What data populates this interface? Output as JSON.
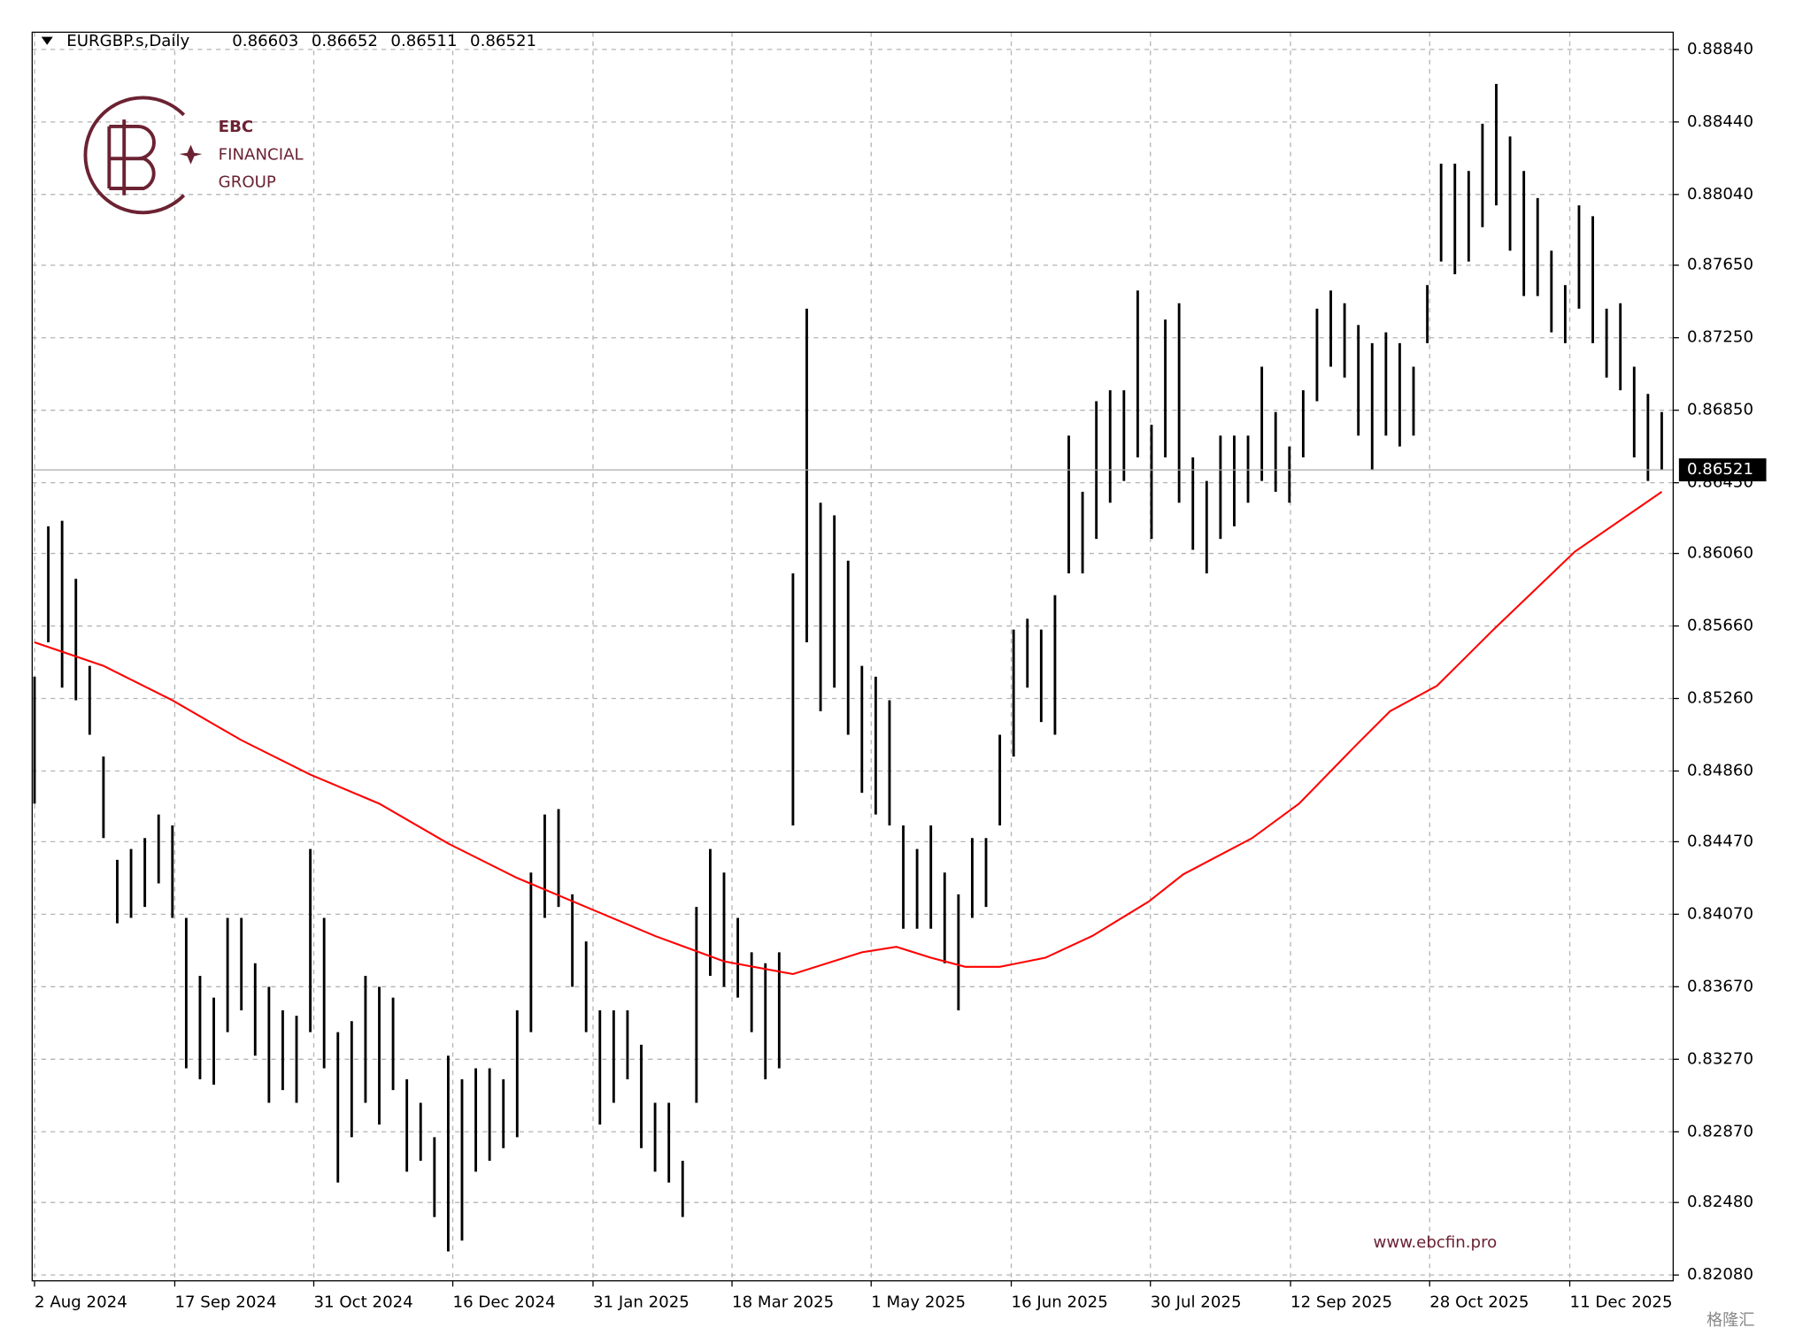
{
  "chart_data": {
    "type": "ohlc",
    "title": "EURGBP.s,Daily",
    "ohlc_header": [
      0.86603,
      0.86652,
      0.86511,
      0.86521
    ],
    "last_price": 0.86521,
    "bar_color": "#000000",
    "grid": true,
    "xlim": [
      -0.17,
      118.83
    ],
    "ylim": [
      0.82048,
      0.88935
    ],
    "xticks": [
      {
        "value": 0,
        "label": "2 Aug 2024"
      },
      {
        "value": 10.17,
        "label": "17 Sep 2024"
      },
      {
        "value": 20.25,
        "label": "31 Oct 2024"
      },
      {
        "value": 30.33,
        "label": "16 Dec 2024"
      },
      {
        "value": 40.5,
        "label": "31 Jan 2025"
      },
      {
        "value": 50.58,
        "label": "18 Mar 2025"
      },
      {
        "value": 60.67,
        "label": "1 May 2025"
      },
      {
        "value": 70.83,
        "label": "16 Jun 2025"
      },
      {
        "value": 80.92,
        "label": "30 Jul 2025"
      },
      {
        "value": 91.08,
        "label": "12 Sep 2025"
      },
      {
        "value": 101.17,
        "label": "28 Oct 2025"
      },
      {
        "value": 111.33,
        "label": "11 Dec 2025"
      }
    ],
    "yticks": [
      {
        "value": 0.8884,
        "label": "0.88840"
      },
      {
        "value": 0.8844,
        "label": "0.88440"
      },
      {
        "value": 0.8804,
        "label": "0.88040"
      },
      {
        "value": 0.8765,
        "label": "0.87650"
      },
      {
        "value": 0.8725,
        "label": "0.87250"
      },
      {
        "value": 0.8685,
        "label": "0.86850"
      },
      {
        "value": 0.8645,
        "label": "0.86450"
      },
      {
        "value": 0.8606,
        "label": "0.86060"
      },
      {
        "value": 0.8566,
        "label": "0.85660"
      },
      {
        "value": 0.8526,
        "label": "0.85260"
      },
      {
        "value": 0.8486,
        "label": "0.84860"
      },
      {
        "value": 0.8447,
        "label": "0.84470"
      },
      {
        "value": 0.8407,
        "label": "0.84070"
      },
      {
        "value": 0.8367,
        "label": "0.83670"
      },
      {
        "value": 0.8327,
        "label": "0.83270"
      },
      {
        "value": 0.8287,
        "label": "0.82870"
      },
      {
        "value": 0.8248,
        "label": "0.82480"
      },
      {
        "value": 0.8208,
        "label": "0.82080"
      }
    ],
    "x": [
      0,
      1,
      2,
      3,
      4,
      5,
      6,
      7,
      8,
      9,
      10,
      11,
      12,
      13,
      14,
      15,
      16,
      17,
      18,
      19,
      20,
      21,
      22,
      23,
      24,
      25,
      26,
      27,
      28,
      29,
      30,
      31,
      32,
      33,
      34,
      35,
      36,
      37,
      38,
      39,
      40,
      41,
      42,
      43,
      44,
      45,
      46,
      47,
      48,
      49,
      50,
      51,
      52,
      53,
      54,
      55,
      56,
      57,
      58,
      59,
      60,
      61,
      62,
      63,
      64,
      65,
      66,
      67,
      68,
      69,
      70,
      71,
      72,
      73,
      74,
      75,
      76,
      77,
      78,
      79,
      80,
      81,
      82,
      83,
      84,
      85,
      86,
      87,
      88,
      89,
      90,
      91,
      92,
      93,
      94,
      95,
      96,
      97,
      98,
      99,
      100,
      101,
      102,
      103,
      104,
      105,
      106,
      107,
      108,
      109,
      110,
      111,
      112,
      113,
      114,
      115,
      116,
      117,
      118
    ],
    "high": [
      0.8538,
      0.8621,
      0.8624,
      0.8592,
      0.8544,
      0.8494,
      0.8437,
      0.8443,
      0.8449,
      0.8462,
      0.8456,
      0.8405,
      0.8373,
      0.8361,
      0.8405,
      0.8405,
      0.838,
      0.8367,
      0.8354,
      0.8351,
      0.8443,
      0.8405,
      0.8342,
      0.8348,
      0.8373,
      0.8367,
      0.8361,
      0.8316,
      0.8303,
      0.8284,
      0.8329,
      0.8316,
      0.8322,
      0.8322,
      0.8316,
      0.8354,
      0.843,
      0.8462,
      0.8465,
      0.8418,
      0.8392,
      0.8354,
      0.8354,
      0.8354,
      0.8335,
      0.8303,
      0.8303,
      0.8271,
      0.8411,
      0.8443,
      0.843,
      0.8405,
      0.8386,
      0.838,
      0.8386,
      0.8595,
      0.8741,
      0.8634,
      0.8627,
      0.8602,
      0.8544,
      0.8538,
      0.8525,
      0.8456,
      0.8443,
      0.8456,
      0.843,
      0.8418,
      0.8449,
      0.8449,
      0.8506,
      0.8564,
      0.857,
      0.8564,
      0.8583,
      0.8671,
      0.864,
      0.869,
      0.8696,
      0.8696,
      0.8751,
      0.8677,
      0.8735,
      0.8744,
      0.8659,
      0.8646,
      0.8671,
      0.8671,
      0.8671,
      0.8709,
      0.8684,
      0.8665,
      0.8696,
      0.8741,
      0.8751,
      0.8744,
      0.8732,
      0.8722,
      0.8728,
      0.8722,
      0.8709,
      0.8754,
      0.8821,
      0.8821,
      0.8817,
      0.8843,
      0.8865,
      0.8836,
      0.8817,
      0.8802,
      0.8773,
      0.8754,
      0.8798,
      0.8792,
      0.8741,
      0.8744,
      0.8709,
      0.8694,
      0.8684
    ],
    "low": [
      0.8468,
      0.8557,
      0.8532,
      0.8525,
      0.8506,
      0.8449,
      0.8402,
      0.8405,
      0.8411,
      0.8424,
      0.8405,
      0.8322,
      0.8316,
      0.8313,
      0.8342,
      0.8354,
      0.8329,
      0.8303,
      0.831,
      0.8303,
      0.8342,
      0.8322,
      0.8259,
      0.8284,
      0.8303,
      0.8291,
      0.831,
      0.8265,
      0.8271,
      0.824,
      0.8221,
      0.8227,
      0.8265,
      0.8271,
      0.8278,
      0.8284,
      0.8342,
      0.8405,
      0.8411,
      0.8367,
      0.8342,
      0.8291,
      0.8303,
      0.8316,
      0.8278,
      0.8265,
      0.8259,
      0.824,
      0.8303,
      0.8373,
      0.8367,
      0.8361,
      0.8342,
      0.8316,
      0.8322,
      0.8456,
      0.8557,
      0.8519,
      0.8532,
      0.8506,
      0.8474,
      0.8462,
      0.8456,
      0.8399,
      0.8399,
      0.8399,
      0.838,
      0.8354,
      0.8405,
      0.8411,
      0.8456,
      0.8494,
      0.8532,
      0.8513,
      0.8506,
      0.8595,
      0.8595,
      0.8614,
      0.8634,
      0.8646,
      0.8659,
      0.8614,
      0.8659,
      0.8634,
      0.8608,
      0.8595,
      0.8614,
      0.8621,
      0.8634,
      0.8646,
      0.864,
      0.8634,
      0.8659,
      0.869,
      0.8709,
      0.8703,
      0.8671,
      0.8652,
      0.8671,
      0.8665,
      0.8671,
      0.8722,
      0.8767,
      0.876,
      0.8767,
      0.8786,
      0.8798,
      0.8773,
      0.8748,
      0.8748,
      0.8728,
      0.8722,
      0.8741,
      0.8722,
      0.8703,
      0.8696,
      0.8659,
      0.8646,
      0.8652
    ],
    "ma": {
      "color": "#ff0000",
      "x": [
        0,
        5,
        10,
        15,
        20,
        25,
        30,
        35,
        40,
        45,
        50,
        55,
        60,
        62.5,
        65,
        67.5,
        70,
        73.3,
        76.7,
        80.8,
        83.3,
        88.3,
        91.7,
        95.8,
        98.3,
        101.7,
        105.8,
        111.7,
        118
      ],
      "values": [
        0.8557,
        0.8544,
        0.8525,
        0.8503,
        0.8484,
        0.8468,
        0.8446,
        0.8427,
        0.8411,
        0.8395,
        0.8381,
        0.8374,
        0.8386,
        0.8389,
        0.8383,
        0.8378,
        0.8378,
        0.8383,
        0.8395,
        0.8414,
        0.8429,
        0.8449,
        0.8468,
        0.85,
        0.8519,
        0.8533,
        0.8564,
        0.8607,
        0.864
      ]
    }
  },
  "brand": {
    "name": "EBC",
    "line2": "FINANCIAL",
    "line3": "GROUP",
    "url": "www.ebcfin.pro"
  },
  "watermark": "格隆汇"
}
